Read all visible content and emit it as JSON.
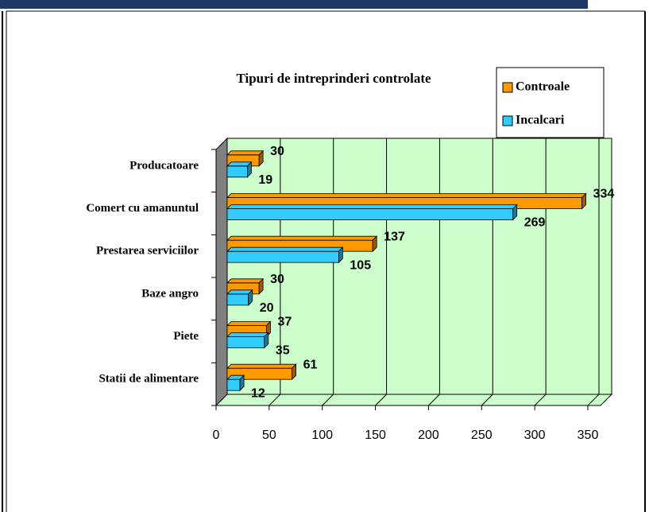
{
  "chart_data": {
    "type": "bar",
    "orientation": "horizontal",
    "title": "Tipuri de intreprinderi controlate",
    "categories": [
      "Producatoare",
      "Comert cu amanuntul",
      "Prestarea serviciilor",
      "Baze angro",
      "Piete",
      "Statii de alimentare"
    ],
    "series": [
      {
        "name": "Controale",
        "color": "#ff9900",
        "values": [
          30,
          334,
          137,
          30,
          37,
          61
        ]
      },
      {
        "name": "Incalcari",
        "color": "#33ccff",
        "values": [
          19,
          269,
          105,
          20,
          35,
          12
        ]
      }
    ],
    "xlim": [
      0,
      350
    ],
    "xticks": [
      0,
      50,
      100,
      150,
      200,
      250,
      300,
      350
    ],
    "grid": true,
    "legend": "top-right"
  }
}
